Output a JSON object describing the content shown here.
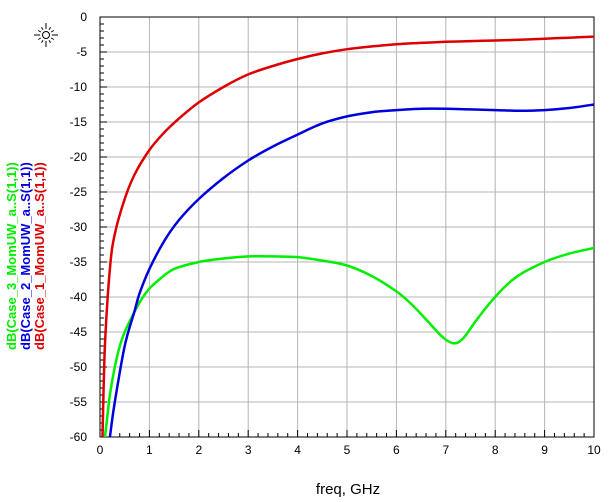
{
  "chart_data": {
    "type": "line",
    "xlabel": "freq, GHz",
    "xlim": [
      0,
      10
    ],
    "ylim": [
      -60,
      0
    ],
    "x_ticks": [
      "0",
      "1",
      "2",
      "3",
      "4",
      "5",
      "6",
      "7",
      "8",
      "9",
      "10"
    ],
    "y_ticks": [
      "0",
      "-5",
      "-10",
      "-15",
      "-20",
      "-25",
      "-30",
      "-35",
      "-40",
      "-45",
      "-50",
      "-55",
      "-60"
    ],
    "grid": true,
    "legend_placement": "left (vertical)",
    "series": [
      {
        "name": "dB(Case_1_MomUW_a..S(1,1))",
        "color": "#dd0000",
        "x": [
          0.05,
          0.1,
          0.2,
          0.3,
          0.5,
          0.7,
          1.0,
          1.3,
          1.6,
          2.0,
          2.5,
          3.0,
          3.5,
          4.0,
          4.5,
          5.0,
          5.5,
          6.0,
          6.5,
          7.0,
          7.5,
          8.0,
          8.5,
          9.0,
          9.5,
          10.0
        ],
        "y": [
          -60,
          -47,
          -36,
          -31,
          -26,
          -22.5,
          -19,
          -16.5,
          -14.5,
          -12.2,
          -10,
          -8.2,
          -7,
          -6,
          -5.2,
          -4.6,
          -4.2,
          -3.9,
          -3.7,
          -3.55,
          -3.45,
          -3.35,
          -3.25,
          -3.1,
          -2.95,
          -2.8
        ]
      },
      {
        "name": "dB(Case_2_MomUW_a..S(1,1))",
        "color": "#0000dd",
        "x": [
          0.2,
          0.3,
          0.5,
          0.7,
          0.8,
          1.0,
          1.3,
          1.6,
          2.0,
          2.5,
          3.0,
          3.5,
          4.0,
          4.5,
          5.0,
          5.5,
          6.0,
          6.5,
          7.0,
          7.5,
          8.0,
          8.5,
          9.0,
          9.5,
          10.0
        ],
        "y": [
          -60,
          -55,
          -47,
          -42,
          -39.5,
          -36,
          -32,
          -29,
          -26,
          -23,
          -20.5,
          -18.5,
          -16.8,
          -15.2,
          -14.2,
          -13.6,
          -13.3,
          -13.1,
          -13.1,
          -13.2,
          -13.3,
          -13.4,
          -13.3,
          -13,
          -12.5
        ]
      },
      {
        "name": "dB(Case_3_MomUW_a..S(1,1))",
        "color": "#00ee00",
        "x": [
          0.1,
          0.15,
          0.2,
          0.3,
          0.4,
          0.5,
          0.6,
          0.8,
          1.0,
          1.2,
          1.5,
          2.0,
          2.5,
          3.0,
          3.5,
          4.0,
          4.5,
          5.0,
          5.5,
          6.0,
          6.3,
          6.6,
          6.9,
          7.1,
          7.25,
          7.4,
          7.6,
          7.9,
          8.2,
          8.5,
          9.0,
          9.5,
          10.0
        ],
        "y": [
          -60,
          -57,
          -54,
          -50,
          -47,
          -45,
          -43.5,
          -40.8,
          -38.8,
          -37.5,
          -36,
          -35,
          -34.5,
          -34.2,
          -34.2,
          -34.3,
          -34.8,
          -35.5,
          -37,
          -39.2,
          -41,
          -43.2,
          -45.5,
          -46.5,
          -46.5,
          -45.5,
          -43.5,
          -40.8,
          -38.5,
          -36.8,
          -35,
          -33.8,
          -33
        ]
      }
    ]
  },
  "marker": {
    "icon": "sun-marker-icon"
  }
}
